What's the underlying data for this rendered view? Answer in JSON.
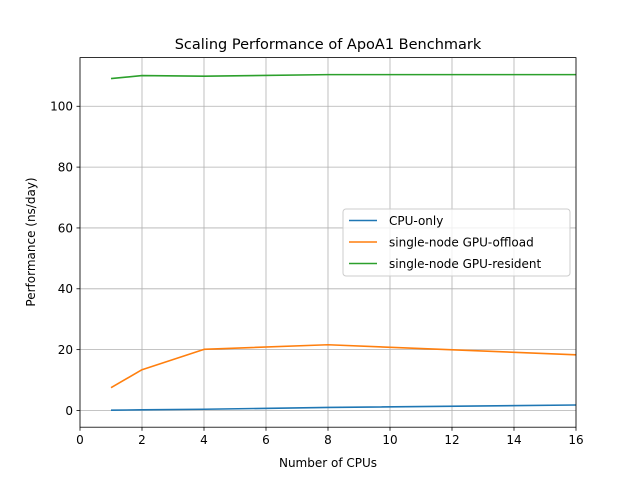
{
  "chart_data": {
    "type": "line",
    "title": "Scaling Performance of ApoA1 Benchmark",
    "xlabel": "Number of CPUs",
    "ylabel": "Performance (ns/day)",
    "xlim": [
      0,
      16
    ],
    "ylim": [
      -5.5,
      116
    ],
    "xticks": [
      0,
      2,
      4,
      6,
      8,
      10,
      12,
      14,
      16
    ],
    "yticks": [
      0,
      20,
      40,
      60,
      80,
      100
    ],
    "grid": true,
    "legend_position": "center-right",
    "x": [
      1,
      2,
      4,
      8,
      16
    ],
    "series": [
      {
        "name": "CPU-only",
        "color": "#1f77b4",
        "values": [
          0.1,
          0.2,
          0.4,
          1.0,
          1.8
        ]
      },
      {
        "name": "single-node GPU-offload",
        "color": "#ff7f0e",
        "values": [
          7.5,
          13.4,
          20.1,
          21.6,
          18.3
        ]
      },
      {
        "name": "single-node GPU-resident",
        "color": "#2ca02c",
        "values": [
          109.1,
          110.1,
          109.9,
          110.4,
          110.4
        ]
      }
    ]
  }
}
